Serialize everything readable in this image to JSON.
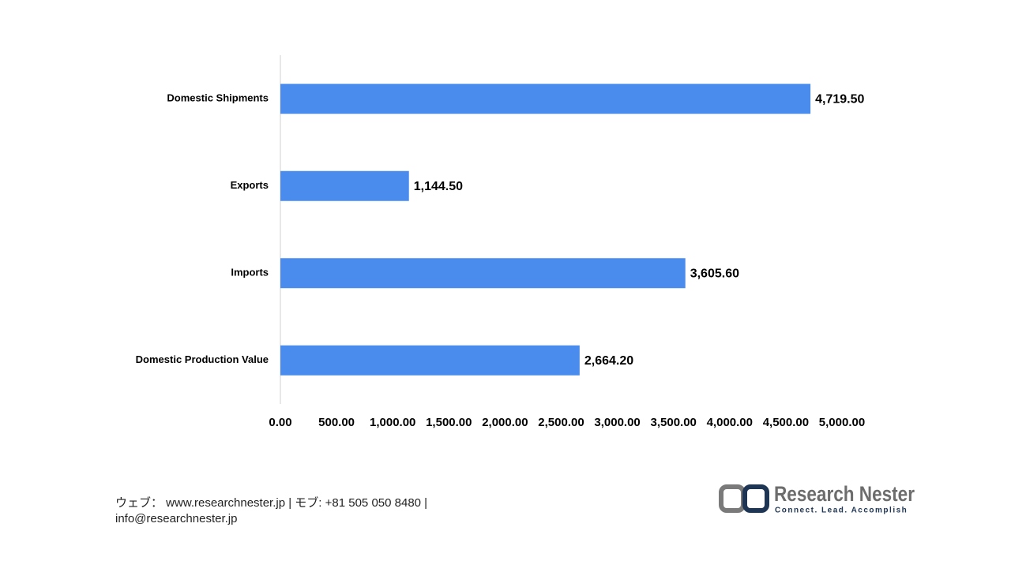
{
  "chart_data": {
    "type": "bar",
    "orientation": "horizontal",
    "categories": [
      "Domestic Shipments",
      "Exports",
      "Imports",
      "Domestic Production Value"
    ],
    "values": [
      4719.5,
      1144.5,
      3605.6,
      2664.2
    ],
    "value_labels": [
      "4,719.50",
      "1,144.50",
      "3,605.60",
      "2,664.20"
    ],
    "color": "#4a8ced",
    "xlim": [
      0,
      5000
    ],
    "xticks": [
      {
        "value": 0,
        "label": "0.00"
      },
      {
        "value": 500,
        "label": "500.00"
      },
      {
        "value": 1000,
        "label": "1,000.00"
      },
      {
        "value": 1500,
        "label": "1,500.00"
      },
      {
        "value": 2000,
        "label": "2,000.00"
      },
      {
        "value": 2500,
        "label": "2,500.00"
      },
      {
        "value": 3000,
        "label": "3,000.00"
      },
      {
        "value": 3500,
        "label": "3,500.00"
      },
      {
        "value": 4000,
        "label": "4,000.00"
      },
      {
        "value": 4500,
        "label": "4,500.00"
      },
      {
        "value": 5000,
        "label": "5,000.00"
      }
    ],
    "grid": false
  },
  "footer": {
    "contact_line1": "ウェブ：  www.researchnester.jp  | モブ: +81 505 050 8480 |",
    "contact_line2": "info@researchnester.jp",
    "logo_name": "Research Nester",
    "logo_tagline": "Connect. Lead. Accomplish"
  }
}
